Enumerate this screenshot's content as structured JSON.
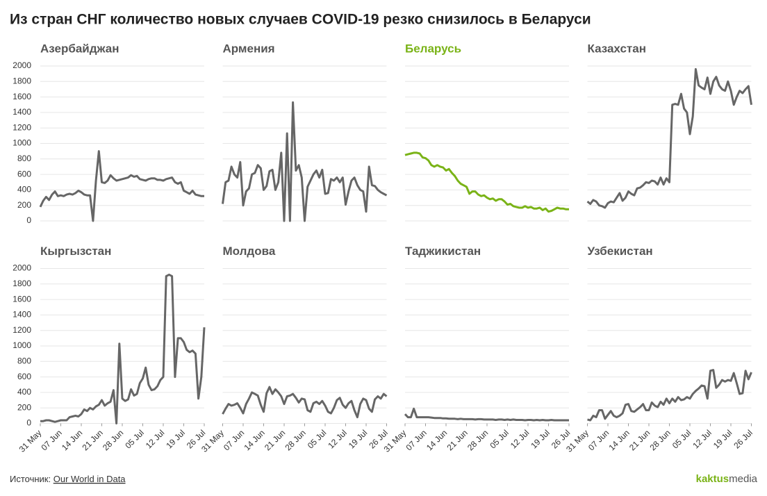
{
  "chart_data": {
    "type": "line",
    "title": "Из стран СНГ количество новых случаев COVID-19 резко снизилось в Беларуси",
    "x": [
      "31 May",
      "01 Jun",
      "02 Jun",
      "03 Jun",
      "04 Jun",
      "05 Jun",
      "06 Jun",
      "07 Jun",
      "08 Jun",
      "09 Jun",
      "10 Jun",
      "11 Jun",
      "12 Jun",
      "13 Jun",
      "14 Jun",
      "15 Jun",
      "16 Jun",
      "17 Jun",
      "18 Jun",
      "19 Jun",
      "20 Jun",
      "21 Jun",
      "22 Jun",
      "23 Jun",
      "24 Jun",
      "25 Jun",
      "26 Jun",
      "27 Jun",
      "28 Jun",
      "29 Jun",
      "30 Jun",
      "01 Jul",
      "02 Jul",
      "03 Jul",
      "04 Jul",
      "05 Jul",
      "06 Jul",
      "07 Jul",
      "08 Jul",
      "09 Jul",
      "10 Jul",
      "11 Jul",
      "12 Jul",
      "13 Jul",
      "14 Jul",
      "15 Jul",
      "16 Jul",
      "17 Jul",
      "18 Jul",
      "19 Jul",
      "20 Jul",
      "21 Jul",
      "22 Jul",
      "23 Jul",
      "24 Jul",
      "25 Jul",
      "26 Jul"
    ],
    "xticks": [
      "31 May",
      "07 Jun",
      "14 Jun",
      "21 Jun",
      "28 Jun",
      "05 Jul",
      "12 Jul",
      "19 Jul",
      "26 Jul"
    ],
    "ylim": [
      0,
      2000
    ],
    "yticks": [
      0,
      200,
      400,
      600,
      800,
      1000,
      1200,
      1400,
      1600,
      1800,
      2000
    ],
    "grid": true,
    "series": [
      {
        "name": "Азербайджан",
        "color": "#666666",
        "values": [
          180,
          260,
          310,
          270,
          340,
          380,
          320,
          330,
          320,
          340,
          350,
          340,
          360,
          390,
          370,
          340,
          330,
          330,
          0,
          520,
          900,
          500,
          490,
          520,
          590,
          550,
          520,
          530,
          540,
          550,
          560,
          590,
          570,
          580,
          540,
          530,
          520,
          540,
          550,
          550,
          530,
          530,
          520,
          540,
          550,
          560,
          500,
          480,
          500,
          390,
          370,
          350,
          390,
          340,
          330,
          320,
          320
        ]
      },
      {
        "name": "Армения",
        "color": "#666666",
        "values": [
          220,
          500,
          520,
          700,
          600,
          560,
          760,
          200,
          380,
          420,
          600,
          620,
          720,
          680,
          400,
          450,
          640,
          660,
          400,
          500,
          880,
          0,
          1130,
          0,
          1530,
          650,
          720,
          560,
          0,
          440,
          520,
          600,
          650,
          560,
          660,
          350,
          360,
          540,
          520,
          560,
          500,
          560,
          210,
          380,
          520,
          560,
          460,
          400,
          380,
          120,
          700,
          460,
          450,
          400,
          370,
          350,
          330
        ]
      },
      {
        "name": "Беларусь",
        "color": "#7ab317",
        "values": [
          850,
          860,
          870,
          880,
          880,
          870,
          820,
          810,
          780,
          720,
          700,
          720,
          700,
          690,
          650,
          670,
          620,
          580,
          520,
          480,
          460,
          440,
          350,
          380,
          380,
          340,
          320,
          330,
          300,
          280,
          290,
          260,
          280,
          280,
          250,
          210,
          220,
          190,
          180,
          170,
          170,
          190,
          170,
          180,
          160,
          160,
          170,
          140,
          160,
          120,
          130,
          150,
          170,
          160,
          160,
          150,
          150
        ]
      },
      {
        "name": "Казахстан",
        "color": "#666666",
        "values": [
          250,
          220,
          270,
          250,
          200,
          190,
          170,
          230,
          250,
          240,
          300,
          360,
          260,
          300,
          380,
          350,
          330,
          420,
          430,
          460,
          500,
          490,
          520,
          510,
          470,
          560,
          470,
          550,
          500,
          1500,
          1510,
          1500,
          1640,
          1450,
          1400,
          1120,
          1350,
          1960,
          1750,
          1720,
          1700,
          1850,
          1640,
          1800,
          1860,
          1750,
          1700,
          1680,
          1800,
          1680,
          1500,
          1600,
          1680,
          1650,
          1700,
          1740,
          1500
        ]
      },
      {
        "name": "Кыргызстан",
        "color": "#666666",
        "values": [
          30,
          30,
          40,
          40,
          30,
          20,
          30,
          40,
          40,
          40,
          80,
          90,
          100,
          90,
          120,
          180,
          160,
          200,
          180,
          220,
          240,
          300,
          230,
          260,
          280,
          430,
          0,
          1030,
          320,
          290,
          310,
          440,
          360,
          380,
          520,
          580,
          720,
          500,
          430,
          440,
          480,
          560,
          600,
          1900,
          1920,
          1900,
          600,
          1100,
          1100,
          1050,
          950,
          920,
          940,
          900,
          320,
          600,
          1240
        ]
      },
      {
        "name": "Молдова",
        "color": "#666666",
        "values": [
          120,
          190,
          250,
          230,
          240,
          260,
          200,
          130,
          250,
          320,
          400,
          380,
          360,
          240,
          150,
          390,
          470,
          380,
          440,
          400,
          350,
          250,
          350,
          360,
          380,
          330,
          270,
          320,
          310,
          170,
          150,
          260,
          280,
          250,
          290,
          230,
          150,
          130,
          200,
          300,
          330,
          240,
          200,
          260,
          290,
          170,
          80,
          250,
          320,
          300,
          190,
          150,
          310,
          350,
          320,
          380,
          350
        ]
      },
      {
        "name": "Таджикистан",
        "color": "#666666",
        "values": [
          120,
          80,
          80,
          190,
          80,
          80,
          80,
          80,
          80,
          75,
          70,
          70,
          70,
          65,
          65,
          60,
          60,
          60,
          55,
          60,
          55,
          55,
          55,
          55,
          50,
          55,
          55,
          50,
          50,
          50,
          50,
          45,
          50,
          50,
          45,
          50,
          45,
          50,
          45,
          45,
          45,
          40,
          45,
          45,
          40,
          45,
          40,
          45,
          40,
          40,
          45,
          40,
          40,
          40,
          40,
          40,
          40
        ]
      },
      {
        "name": "Узбекистан",
        "color": "#666666",
        "values": [
          50,
          40,
          100,
          80,
          170,
          170,
          60,
          110,
          160,
          100,
          80,
          100,
          130,
          240,
          250,
          160,
          150,
          180,
          210,
          250,
          170,
          170,
          270,
          230,
          210,
          280,
          240,
          320,
          260,
          320,
          280,
          340,
          300,
          310,
          340,
          320,
          380,
          420,
          450,
          490,
          480,
          320,
          680,
          690,
          460,
          500,
          560,
          540,
          560,
          550,
          650,
          520,
          380,
          390,
          680,
          570,
          660
        ]
      }
    ],
    "source_label": "Источник:",
    "source_link": "Our World in Data",
    "logo": [
      "kaktus",
      "media"
    ]
  }
}
